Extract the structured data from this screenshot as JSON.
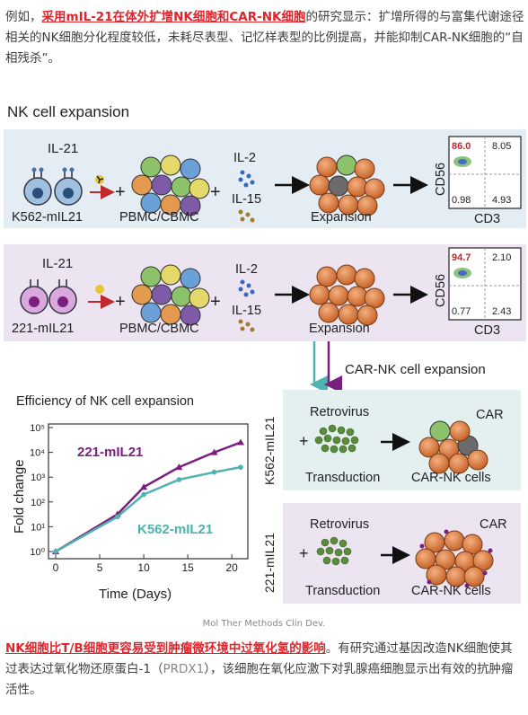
{
  "intro": {
    "prefix": "例如，",
    "highlight": "采用mIL-21在体外扩增NK细胞和CAR-NK细胞",
    "rest": "的研究显示：扩增所得的与富集代谢途径相关的NK细胞分化程度较低，未耗尽表型、记忆样表型的比例提高，并能抑制CAR-NK细胞的“自相残杀”。"
  },
  "figure": {
    "title": "NK cell expansion",
    "row1": {
      "il21": "IL-21",
      "feeder": "K562-mIL21",
      "pbmc": "PBMC/CBMC",
      "il2": "IL-2",
      "il15": "IL-15",
      "expansion": "Expansion",
      "flow": {
        "q1": "86.0",
        "q2": "8.05",
        "q3": "0.98",
        "q4": "4.93",
        "y": "CD56",
        "x": "CD3"
      }
    },
    "row2": {
      "il21": "IL-21",
      "feeder": "221-mIL21",
      "pbmc": "PBMC/CBMC",
      "il2": "IL-2",
      "il15": "IL-15",
      "expansion": "Expansion",
      "flow": {
        "q1": "94.7",
        "q2": "2.10",
        "q3": "0.77",
        "q4": "2.43",
        "y": "CD56",
        "x": "CD3"
      }
    },
    "car_expansion": "CAR-NK cell expansion",
    "car_box1": {
      "side": "K562-mIL21",
      "virus": "Retrovirus",
      "transduction": "Transduction",
      "car": "CAR",
      "cells": "CAR-NK cells"
    },
    "car_box2": {
      "side": "221-mIL21",
      "virus": "Retrovirus",
      "transduction": "Transduction",
      "car": "CAR",
      "cells": "CAR-NK cells"
    },
    "colors": {
      "purple": "#7a1f7d",
      "teal": "#4eb3b0",
      "red": "#c0282c",
      "row1_bg": "#e4ecf4",
      "row2_bg": "#ece4f1"
    }
  },
  "chart_data": {
    "type": "line",
    "title": "Efficiency of NK cell expansion",
    "xlabel": "Time (Days)",
    "ylabel": "Fold change",
    "xlim": [
      0,
      21
    ],
    "ylim": [
      0,
      5
    ],
    "yscale": "log",
    "x_ticks": [
      "0",
      "5",
      "10",
      "15",
      "20"
    ],
    "y_ticks": [
      "10⁰",
      "10¹",
      "10²",
      "10³",
      "10⁴",
      "10⁵"
    ],
    "series": [
      {
        "name": "221-mIL21",
        "color": "#7a1f7d",
        "x": [
          0,
          7,
          10,
          14,
          18,
          21
        ],
        "y": [
          0.0,
          1.5,
          2.6,
          3.4,
          4.0,
          4.4
        ]
      },
      {
        "name": "K562-mIL21",
        "color": "#4eb3b0",
        "x": [
          0,
          7,
          10,
          14,
          18,
          21
        ],
        "y": [
          0.0,
          1.4,
          2.3,
          2.9,
          3.2,
          3.4
        ]
      }
    ]
  },
  "source": "Mol Ther Methods Clin Dev.",
  "outro": {
    "highlight": "NK细胞比T/B细胞更容易受到肿瘤微环境中过氧化氢的影响",
    "part1": "。有研究通过基因改造NK细胞使其过表达过氧化物还原蛋白-1（",
    "muted": "PRDX1",
    "part2": "），该细胞在氧化应激下对乳腺癌细胞显示出有效的抗肿瘤活性。"
  }
}
